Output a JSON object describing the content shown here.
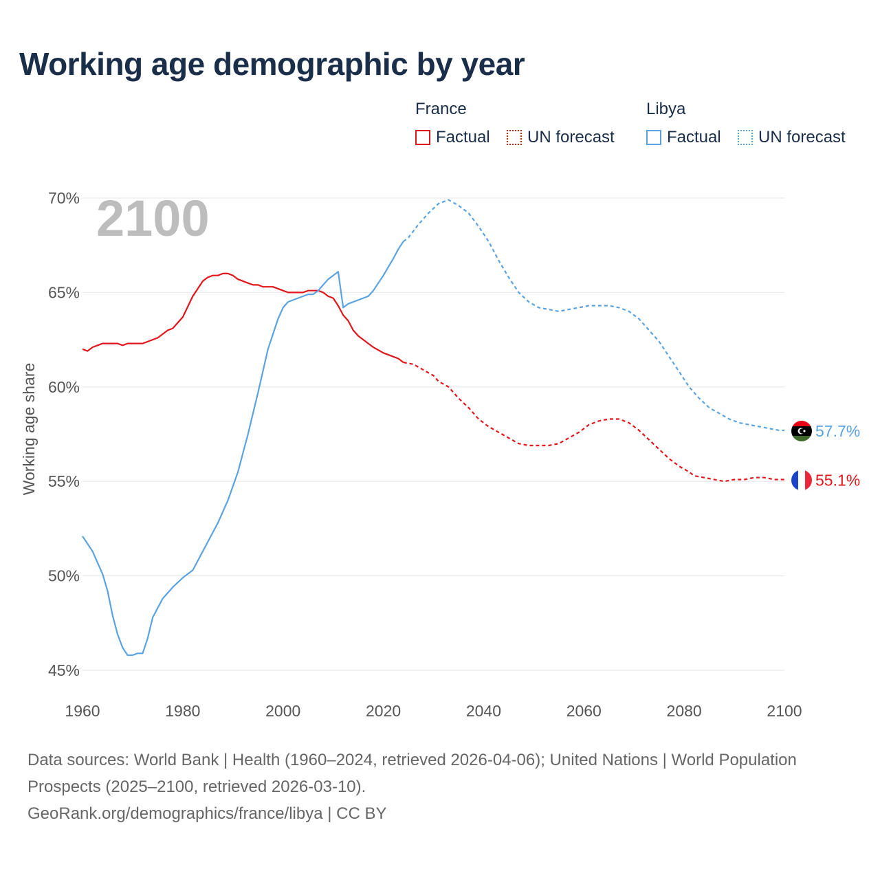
{
  "title": "Working age demographic by year",
  "legend": {
    "groups": [
      {
        "name": "France",
        "factual": "Factual",
        "forecast": "UN forecast"
      },
      {
        "name": "Libya",
        "factual": "Factual",
        "forecast": "UN forecast"
      }
    ]
  },
  "colors": {
    "france": "#e0161b",
    "libya": "#5aa3e0",
    "grid": "#e6e6e6",
    "text": "#1a2e4a"
  },
  "icons": {
    "france": "france-flag-icon",
    "libya": "libya-flag-icon"
  },
  "footer": {
    "sources": "Data sources: World Bank | Health (1960–2024, retrieved 2026-04-06); United Nations | World Population Prospects (2025–2100, retrieved 2026-03-10).",
    "credit": "GeoRank.org/demographics/france/libya | CC BY"
  },
  "chart_data": {
    "type": "line",
    "title": "Working age demographic by year",
    "year_label": "2100",
    "ylabel": "Working age share",
    "xlabel": "",
    "xlim": [
      1960,
      2100
    ],
    "ylim": [
      45,
      70
    ],
    "x_ticks": [
      "1960",
      "1980",
      "2000",
      "2020",
      "2040",
      "2060",
      "2080",
      "2100"
    ],
    "y_ticks": [
      "45%",
      "50%",
      "55%",
      "60%",
      "65%",
      "70%"
    ],
    "grid": true,
    "forecast_start": 2024,
    "series": [
      {
        "name": "France",
        "end_label": "55.1%",
        "points": [
          [
            1960,
            62.0
          ],
          [
            1961,
            61.9
          ],
          [
            1962,
            62.1
          ],
          [
            1963,
            62.2
          ],
          [
            1964,
            62.3
          ],
          [
            1965,
            62.3
          ],
          [
            1966,
            62.3
          ],
          [
            1967,
            62.3
          ],
          [
            1968,
            62.2
          ],
          [
            1969,
            62.3
          ],
          [
            1970,
            62.3
          ],
          [
            1972,
            62.3
          ],
          [
            1974,
            62.5
          ],
          [
            1975,
            62.6
          ],
          [
            1977,
            63.0
          ],
          [
            1978,
            63.1
          ],
          [
            1980,
            63.7
          ],
          [
            1982,
            64.8
          ],
          [
            1984,
            65.6
          ],
          [
            1985,
            65.8
          ],
          [
            1986,
            65.9
          ],
          [
            1987,
            65.9
          ],
          [
            1988,
            66.0
          ],
          [
            1989,
            66.0
          ],
          [
            1990,
            65.9
          ],
          [
            1991,
            65.7
          ],
          [
            1993,
            65.5
          ],
          [
            1994,
            65.4
          ],
          [
            1995,
            65.4
          ],
          [
            1996,
            65.3
          ],
          [
            1998,
            65.3
          ],
          [
            2000,
            65.1
          ],
          [
            2001,
            65.0
          ],
          [
            2004,
            65.0
          ],
          [
            2005,
            65.1
          ],
          [
            2007,
            65.1
          ],
          [
            2008,
            65.0
          ],
          [
            2009,
            64.8
          ],
          [
            2010,
            64.7
          ],
          [
            2011,
            64.3
          ],
          [
            2012,
            63.8
          ],
          [
            2013,
            63.5
          ],
          [
            2014,
            63.0
          ],
          [
            2015,
            62.7
          ],
          [
            2016,
            62.5
          ],
          [
            2018,
            62.1
          ],
          [
            2020,
            61.8
          ],
          [
            2022,
            61.6
          ],
          [
            2023,
            61.5
          ],
          [
            2024,
            61.3
          ],
          [
            2026,
            61.2
          ],
          [
            2028,
            60.9
          ],
          [
            2030,
            60.6
          ],
          [
            2031,
            60.3
          ],
          [
            2033,
            60.0
          ],
          [
            2035,
            59.4
          ],
          [
            2037,
            58.9
          ],
          [
            2039,
            58.3
          ],
          [
            2041,
            57.9
          ],
          [
            2043,
            57.6
          ],
          [
            2045,
            57.3
          ],
          [
            2047,
            57.0
          ],
          [
            2049,
            56.9
          ],
          [
            2051,
            56.9
          ],
          [
            2053,
            56.9
          ],
          [
            2055,
            57.0
          ],
          [
            2057,
            57.3
          ],
          [
            2059,
            57.6
          ],
          [
            2061,
            58.0
          ],
          [
            2063,
            58.2
          ],
          [
            2065,
            58.3
          ],
          [
            2067,
            58.3
          ],
          [
            2069,
            58.1
          ],
          [
            2071,
            57.7
          ],
          [
            2073,
            57.2
          ],
          [
            2075,
            56.7
          ],
          [
            2077,
            56.2
          ],
          [
            2079,
            55.8
          ],
          [
            2081,
            55.5
          ],
          [
            2082,
            55.3
          ],
          [
            2084,
            55.2
          ],
          [
            2086,
            55.1
          ],
          [
            2088,
            55.0
          ],
          [
            2090,
            55.1
          ],
          [
            2092,
            55.1
          ],
          [
            2094,
            55.2
          ],
          [
            2096,
            55.2
          ],
          [
            2098,
            55.1
          ],
          [
            2100,
            55.1
          ]
        ]
      },
      {
        "name": "Libya",
        "end_label": "57.7%",
        "points": [
          [
            1960,
            52.1
          ],
          [
            1962,
            51.3
          ],
          [
            1964,
            50.1
          ],
          [
            1965,
            49.2
          ],
          [
            1966,
            47.9
          ],
          [
            1967,
            46.9
          ],
          [
            1968,
            46.2
          ],
          [
            1969,
            45.8
          ],
          [
            1970,
            45.8
          ],
          [
            1971,
            45.9
          ],
          [
            1972,
            45.9
          ],
          [
            1973,
            46.7
          ],
          [
            1974,
            47.8
          ],
          [
            1975,
            48.3
          ],
          [
            1976,
            48.8
          ],
          [
            1978,
            49.4
          ],
          [
            1980,
            49.9
          ],
          [
            1982,
            50.3
          ],
          [
            1983,
            50.8
          ],
          [
            1985,
            51.8
          ],
          [
            1987,
            52.8
          ],
          [
            1989,
            54.0
          ],
          [
            1991,
            55.5
          ],
          [
            1993,
            57.5
          ],
          [
            1995,
            59.7
          ],
          [
            1997,
            62.0
          ],
          [
            1999,
            63.6
          ],
          [
            2000,
            64.2
          ],
          [
            2001,
            64.5
          ],
          [
            2003,
            64.7
          ],
          [
            2005,
            64.9
          ],
          [
            2006,
            64.9
          ],
          [
            2007,
            65.1
          ],
          [
            2009,
            65.7
          ],
          [
            2011,
            66.1
          ],
          [
            2012,
            64.2
          ],
          [
            2013,
            64.4
          ],
          [
            2015,
            64.6
          ],
          [
            2017,
            64.8
          ],
          [
            2018,
            65.1
          ],
          [
            2020,
            65.9
          ],
          [
            2022,
            66.8
          ],
          [
            2023,
            67.3
          ],
          [
            2024,
            67.7
          ],
          [
            2025,
            67.9
          ],
          [
            2027,
            68.6
          ],
          [
            2029,
            69.2
          ],
          [
            2031,
            69.7
          ],
          [
            2033,
            69.9
          ],
          [
            2035,
            69.6
          ],
          [
            2037,
            69.2
          ],
          [
            2039,
            68.5
          ],
          [
            2041,
            67.7
          ],
          [
            2043,
            66.7
          ],
          [
            2045,
            65.8
          ],
          [
            2047,
            65.0
          ],
          [
            2049,
            64.5
          ],
          [
            2051,
            64.2
          ],
          [
            2053,
            64.1
          ],
          [
            2055,
            64.0
          ],
          [
            2057,
            64.1
          ],
          [
            2059,
            64.2
          ],
          [
            2061,
            64.3
          ],
          [
            2063,
            64.3
          ],
          [
            2065,
            64.3
          ],
          [
            2067,
            64.2
          ],
          [
            2069,
            64.0
          ],
          [
            2071,
            63.6
          ],
          [
            2073,
            63.0
          ],
          [
            2075,
            62.4
          ],
          [
            2077,
            61.6
          ],
          [
            2079,
            60.8
          ],
          [
            2081,
            60.0
          ],
          [
            2083,
            59.4
          ],
          [
            2085,
            58.9
          ],
          [
            2087,
            58.6
          ],
          [
            2089,
            58.3
          ],
          [
            2091,
            58.1
          ],
          [
            2093,
            58.0
          ],
          [
            2095,
            57.9
          ],
          [
            2097,
            57.8
          ],
          [
            2099,
            57.7
          ],
          [
            2100,
            57.7
          ]
        ]
      }
    ]
  }
}
